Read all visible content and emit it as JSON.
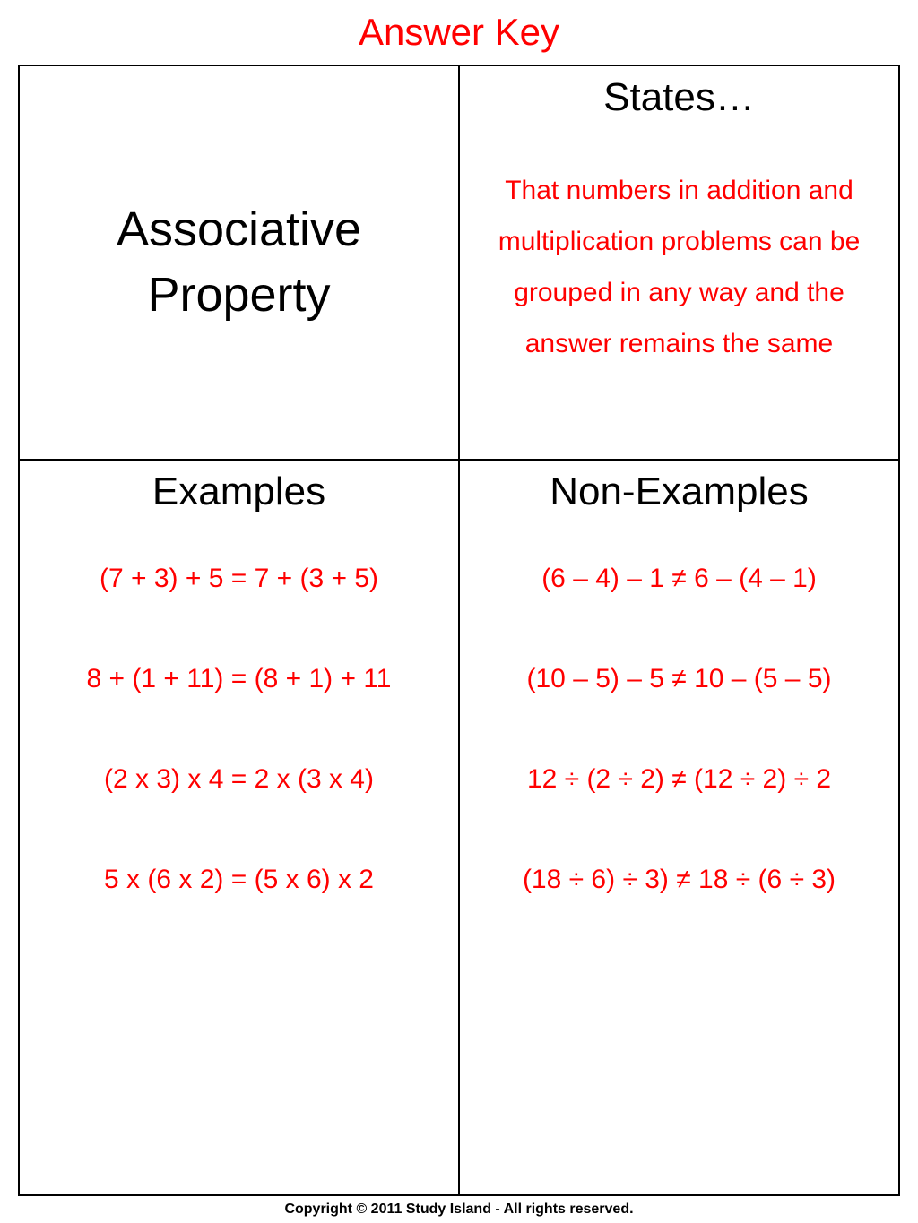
{
  "colors": {
    "answer_red": "#ff0000",
    "black": "#000000",
    "background": "#ffffff"
  },
  "typography": {
    "title_fontsize": 42,
    "property_fontsize": 54,
    "heading_fontsize": 44,
    "body_fontsize": 30,
    "equation_fontsize": 30,
    "footer_fontsize": 16
  },
  "title": "Answer Key",
  "property_name": "Associative Property",
  "states": {
    "heading": "States…",
    "body": "That numbers in addition and multiplication problems can be grouped in any way and the answer remains the same"
  },
  "examples": {
    "heading": "Examples",
    "items": [
      "(7 + 3) + 5 = 7 + (3 + 5)",
      "8 + (1 + 11) = (8 + 1) + 11",
      "(2 x 3) x 4 = 2 x (3 x 4)",
      "5 x (6 x 2) = (5 x 6) x 2"
    ]
  },
  "non_examples": {
    "heading": "Non-Examples",
    "items": [
      "(6 – 4) – 1 ≠ 6 – (4 – 1)",
      "(10 – 5) – 5 ≠ 10 – (5 – 5)",
      "12 ÷ (2 ÷ 2) ≠ (12 ÷ 2) ÷ 2",
      "(18 ÷ 6) ÷ 3) ≠ 18 ÷ (6 ÷ 3)"
    ]
  },
  "footer": "Copyright © 2011 Study Island - All rights reserved."
}
